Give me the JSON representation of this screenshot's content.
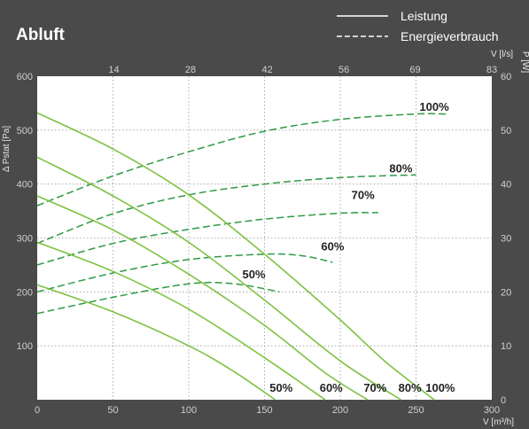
{
  "chart_data": {
    "type": "line",
    "title": "Abluft",
    "legend": [
      {
        "label": "Leistung",
        "style": "solid"
      },
      {
        "label": "Energieverbrauch",
        "style": "dashed"
      }
    ],
    "legend_position": "top-right",
    "xlabel": "V [m³/h]",
    "x2label": "V [l/s]",
    "ylabel": "Δ Pstat [Pa]",
    "y2label": "P [W]",
    "xlim": [
      0,
      300
    ],
    "ylim": [
      0,
      600
    ],
    "y2lim": [
      0,
      60
    ],
    "x_ticks": [
      "0",
      "50",
      "100",
      "150",
      "200",
      "250",
      "300"
    ],
    "x2_ticks": [
      "14",
      "28",
      "42",
      "56",
      "69",
      "83"
    ],
    "y_ticks": [
      "100",
      "200",
      "300",
      "400",
      "500",
      "600"
    ],
    "y2_ticks": [
      "0",
      "10",
      "20",
      "30",
      "40",
      "50",
      "60"
    ],
    "grid": true,
    "colors": {
      "background": "#4a4a4a",
      "plot": "#ffffff",
      "curve": "#7dc242",
      "power": "#2e9a44",
      "grid": "#9a9a9a"
    },
    "pressure_series": [
      {
        "name": "100%",
        "points": [
          [
            0,
            532
          ],
          [
            50,
            465
          ],
          [
            100,
            380
          ],
          [
            150,
            270
          ],
          [
            200,
            148
          ],
          [
            230,
            70
          ],
          [
            262,
            0
          ]
        ]
      },
      {
        "name": "80%",
        "points": [
          [
            0,
            450
          ],
          [
            50,
            378
          ],
          [
            100,
            292
          ],
          [
            150,
            185
          ],
          [
            200,
            72
          ],
          [
            240,
            0
          ]
        ]
      },
      {
        "name": "70%",
        "points": [
          [
            0,
            378
          ],
          [
            50,
            315
          ],
          [
            100,
            233
          ],
          [
            150,
            138
          ],
          [
            190,
            50
          ],
          [
            218,
            0
          ]
        ]
      },
      {
        "name": "60%",
        "points": [
          [
            0,
            292
          ],
          [
            50,
            238
          ],
          [
            100,
            168
          ],
          [
            150,
            78
          ],
          [
            190,
            0
          ]
        ]
      },
      {
        "name": "50%",
        "points": [
          [
            0,
            213
          ],
          [
            50,
            163
          ],
          [
            100,
            100
          ],
          [
            130,
            52
          ],
          [
            157,
            0
          ]
        ]
      }
    ],
    "power_series": [
      {
        "name": "100%",
        "points": [
          [
            0,
            36
          ],
          [
            50,
            41.5
          ],
          [
            100,
            46
          ],
          [
            150,
            49.8
          ],
          [
            200,
            52
          ],
          [
            250,
            53
          ],
          [
            270,
            53
          ]
        ]
      },
      {
        "name": "80%",
        "points": [
          [
            0,
            29
          ],
          [
            50,
            34.5
          ],
          [
            100,
            38
          ],
          [
            150,
            40
          ],
          [
            200,
            41.2
          ],
          [
            250,
            41.7
          ]
        ]
      },
      {
        "name": "70%",
        "points": [
          [
            0,
            25
          ],
          [
            50,
            29
          ],
          [
            100,
            31.6
          ],
          [
            150,
            33.5
          ],
          [
            200,
            34.6
          ],
          [
            225,
            34.7
          ]
        ]
      },
      {
        "name": "60%",
        "points": [
          [
            0,
            20
          ],
          [
            50,
            23.5
          ],
          [
            100,
            26
          ],
          [
            150,
            27
          ],
          [
            175,
            26.7
          ],
          [
            195,
            25.5
          ]
        ]
      },
      {
        "name": "50%",
        "points": [
          [
            0,
            16
          ],
          [
            50,
            19
          ],
          [
            100,
            21.5
          ],
          [
            130,
            21.5
          ],
          [
            160,
            20
          ]
        ]
      }
    ],
    "power_labels": [
      {
        "text": "100%",
        "x": 262,
        "y": 53.6
      },
      {
        "text": "80%",
        "x": 240,
        "y": 42.2
      },
      {
        "text": "70%",
        "x": 215,
        "y": 37.2
      },
      {
        "text": "60%",
        "x": 195,
        "y": 27.7
      },
      {
        "text": "50%",
        "x": 143,
        "y": 22.5
      }
    ],
    "pressure_labels": [
      {
        "text": "50%",
        "x": 161,
        "y": 15
      },
      {
        "text": "60%",
        "x": 194,
        "y": 15
      },
      {
        "text": "70%",
        "x": 223,
        "y": 15
      },
      {
        "text": "80%",
        "x": 246,
        "y": 15
      },
      {
        "text": "100%",
        "x": 266,
        "y": 15
      }
    ]
  }
}
